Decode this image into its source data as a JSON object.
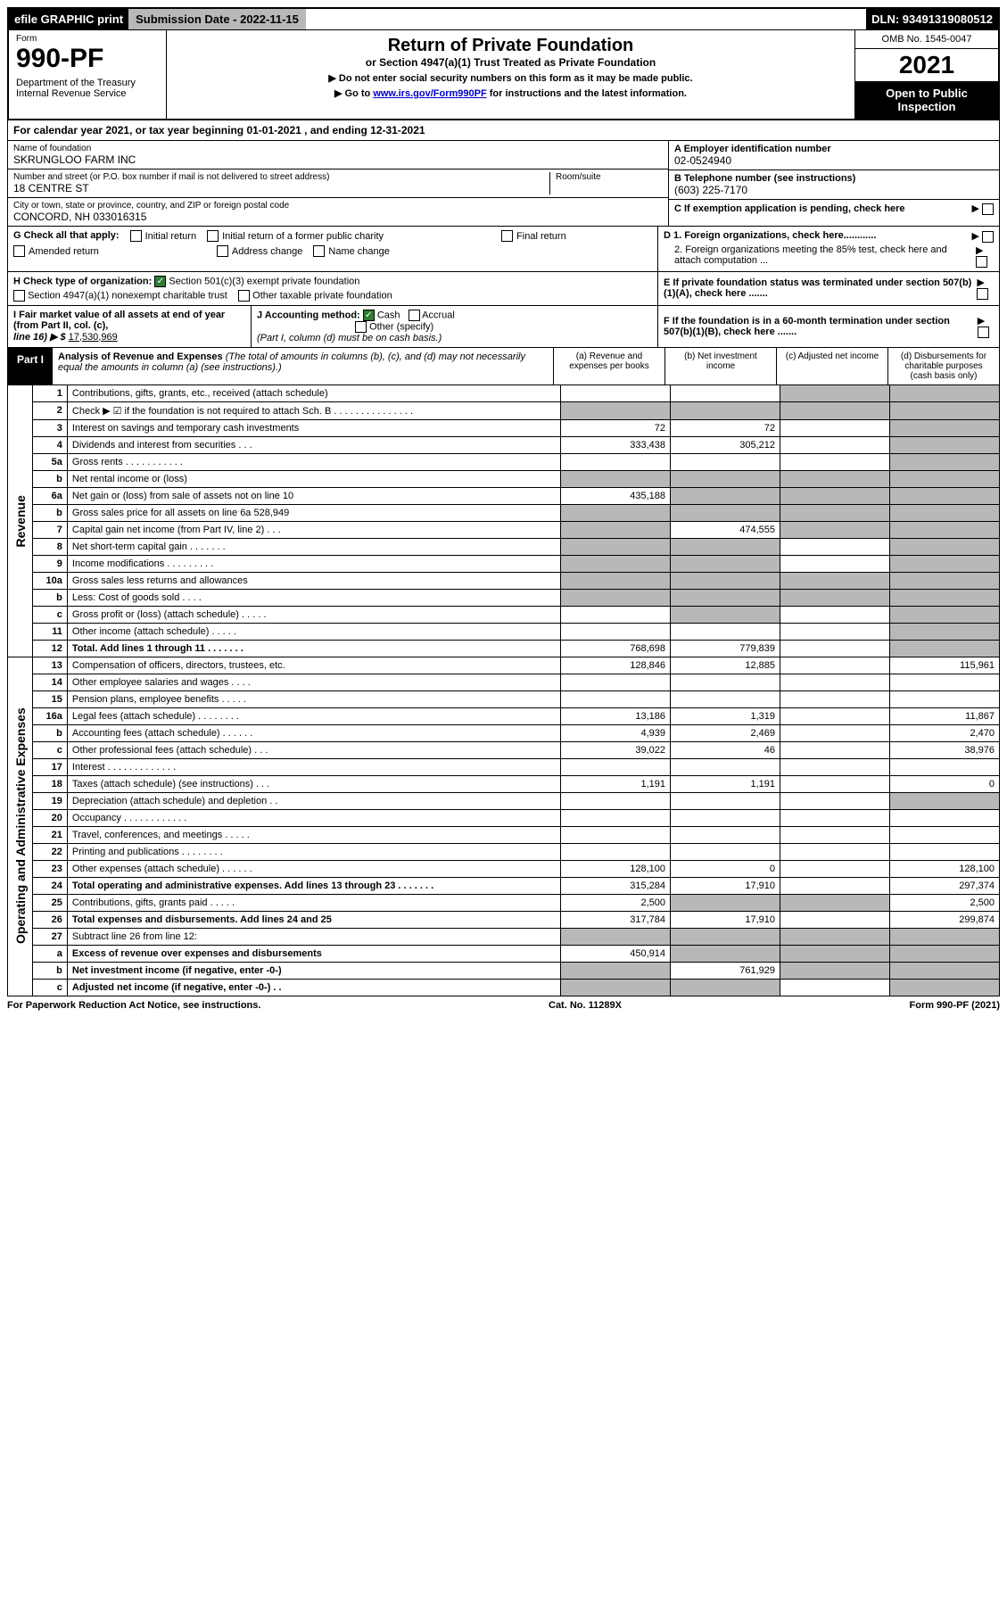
{
  "header": {
    "efile": "efile GRAPHIC print",
    "submission_label": "Submission Date - 2022-11-15",
    "dln": "DLN: 93491319080512",
    "form_label": "Form",
    "form_number": "990-PF",
    "dept": "Department of the Treasury\nInternal Revenue Service",
    "title": "Return of Private Foundation",
    "subtitle": "or Section 4947(a)(1) Trust Treated as Private Foundation",
    "instr1": "▶ Do not enter social security numbers on this form as it may be made public.",
    "instr2_pre": "▶ Go to ",
    "instr2_link": "www.irs.gov/Form990PF",
    "instr2_post": " for instructions and the latest information.",
    "omb": "OMB No. 1545-0047",
    "year": "2021",
    "open": "Open to Public Inspection"
  },
  "calendar": "For calendar year 2021, or tax year beginning 01-01-2021           , and ending 12-31-2021",
  "foundation": {
    "name_label": "Name of foundation",
    "name": "SKRUNGLOO FARM INC",
    "addr_label": "Number and street (or P.O. box number if mail is not delivered to street address)",
    "addr": "18 CENTRE ST",
    "room_label": "Room/suite",
    "city_label": "City or town, state or province, country, and ZIP or foreign postal code",
    "city": "CONCORD, NH  033016315",
    "ein_label": "A Employer identification number",
    "ein": "02-0524940",
    "phone_label": "B Telephone number (see instructions)",
    "phone": "(603) 225-7170",
    "c_label": "C If exemption application is pending, check here",
    "d1_label": "D 1. Foreign organizations, check here............",
    "d2_label": "2. Foreign organizations meeting the 85% test, check here and attach computation ...",
    "e_label": "E If private foundation status was terminated under section 507(b)(1)(A), check here .......",
    "f_label": "F If the foundation is in a 60-month termination under section 507(b)(1)(B), check here ......."
  },
  "g": {
    "label": "G Check all that apply:",
    "initial": "Initial return",
    "initial_former": "Initial return of a former public charity",
    "final": "Final return",
    "amended": "Amended return",
    "addr_change": "Address change",
    "name_change": "Name change"
  },
  "h": {
    "label": "H Check type of organization:",
    "c3": "Section 501(c)(3) exempt private foundation",
    "4947": "Section 4947(a)(1) nonexempt charitable trust",
    "other_taxable": "Other taxable private foundation"
  },
  "i": {
    "label": "I Fair market value of all assets at end of year (from Part II, col. (c),",
    "line16": "line 16) ▶ $",
    "value": "17,530,969"
  },
  "j": {
    "label": "J Accounting method:",
    "cash": "Cash",
    "accrual": "Accrual",
    "other": "Other (specify)",
    "note": "(Part I, column (d) must be on cash basis.)"
  },
  "part1": {
    "label": "Part I",
    "title": "Analysis of Revenue and Expenses",
    "note": "(The total of amounts in columns (b), (c), and (d) may not necessarily equal the amounts in column (a) (see instructions).)",
    "col_a": "(a) Revenue and expenses per books",
    "col_b": "(b) Net investment income",
    "col_c": "(c) Adjusted net income",
    "col_d": "(d) Disbursements for charitable purposes (cash basis only)"
  },
  "sidebar": {
    "revenue": "Revenue",
    "expenses": "Operating and Administrative Expenses"
  },
  "rows": [
    {
      "n": "1",
      "desc": "Contributions, gifts, grants, etc., received (attach schedule)",
      "a": "",
      "b": "",
      "c_shade": true,
      "d_shade": true
    },
    {
      "n": "2",
      "desc": "Check ▶ ☑ if the foundation is not required to attach Sch. B  . . . . . . . . . . . . . . .",
      "a_shade": true,
      "b_shade": true,
      "c_shade": true,
      "d_shade": true
    },
    {
      "n": "3",
      "desc": "Interest on savings and temporary cash investments",
      "a": "72",
      "b": "72",
      "c": "",
      "d_shade": true
    },
    {
      "n": "4",
      "desc": "Dividends and interest from securities  . . .",
      "a": "333,438",
      "b": "305,212",
      "c": "",
      "d_shade": true
    },
    {
      "n": "5a",
      "desc": "Gross rents  . . . . . . . . . . .",
      "a": "",
      "b": "",
      "c": "",
      "d_shade": true
    },
    {
      "n": "b",
      "desc": "Net rental income or (loss)",
      "a_shade": true,
      "b_shade": true,
      "c_shade": true,
      "d_shade": true
    },
    {
      "n": "6a",
      "desc": "Net gain or (loss) from sale of assets not on line 10",
      "a": "435,188",
      "b_shade": true,
      "c_shade": true,
      "d_shade": true
    },
    {
      "n": "b",
      "desc": "Gross sales price for all assets on line 6a         528,949",
      "a_shade": true,
      "b_shade": true,
      "c_shade": true,
      "d_shade": true
    },
    {
      "n": "7",
      "desc": "Capital gain net income (from Part IV, line 2)  . . .",
      "a_shade": true,
      "b": "474,555",
      "c_shade": true,
      "d_shade": true
    },
    {
      "n": "8",
      "desc": "Net short-term capital gain . . . . . . .",
      "a_shade": true,
      "b_shade": true,
      "c": "",
      "d_shade": true
    },
    {
      "n": "9",
      "desc": "Income modifications . . . . . . . . .",
      "a_shade": true,
      "b_shade": true,
      "c": "",
      "d_shade": true
    },
    {
      "n": "10a",
      "desc": "Gross sales less returns and allowances",
      "a_shade": true,
      "b_shade": true,
      "c_shade": true,
      "d_shade": true
    },
    {
      "n": "b",
      "desc": "Less: Cost of goods sold  . . . .",
      "a_shade": true,
      "b_shade": true,
      "c_shade": true,
      "d_shade": true
    },
    {
      "n": "c",
      "desc": "Gross profit or (loss) (attach schedule)  . . . . .",
      "a": "",
      "b_shade": true,
      "c": "",
      "d_shade": true
    },
    {
      "n": "11",
      "desc": "Other income (attach schedule)  . . . . .",
      "a": "",
      "b": "",
      "c": "",
      "d_shade": true
    },
    {
      "n": "12",
      "desc": "Total. Add lines 1 through 11  . . . . . . .",
      "a": "768,698",
      "b": "779,839",
      "c": "",
      "d_shade": true,
      "bold": true
    },
    {
      "n": "13",
      "desc": "Compensation of officers, directors, trustees, etc.",
      "a": "128,846",
      "b": "12,885",
      "c": "",
      "d": "115,961"
    },
    {
      "n": "14",
      "desc": "Other employee salaries and wages  . . . .",
      "a": "",
      "b": "",
      "c": "",
      "d": ""
    },
    {
      "n": "15",
      "desc": "Pension plans, employee benefits . . . . .",
      "a": "",
      "b": "",
      "c": "",
      "d": ""
    },
    {
      "n": "16a",
      "desc": "Legal fees (attach schedule) . . . . . . . .",
      "a": "13,186",
      "b": "1,319",
      "c": "",
      "d": "11,867"
    },
    {
      "n": "b",
      "desc": "Accounting fees (attach schedule) . . . . . .",
      "a": "4,939",
      "b": "2,469",
      "c": "",
      "d": "2,470"
    },
    {
      "n": "c",
      "desc": "Other professional fees (attach schedule)  . . .",
      "a": "39,022",
      "b": "46",
      "c": "",
      "d": "38,976"
    },
    {
      "n": "17",
      "desc": "Interest . . . . . . . . . . . . .",
      "a": "",
      "b": "",
      "c": "",
      "d": ""
    },
    {
      "n": "18",
      "desc": "Taxes (attach schedule) (see instructions)  . . .",
      "a": "1,191",
      "b": "1,191",
      "c": "",
      "d": "0"
    },
    {
      "n": "19",
      "desc": "Depreciation (attach schedule) and depletion  . .",
      "a": "",
      "b": "",
      "c": "",
      "d_shade": true
    },
    {
      "n": "20",
      "desc": "Occupancy . . . . . . . . . . . .",
      "a": "",
      "b": "",
      "c": "",
      "d": ""
    },
    {
      "n": "21",
      "desc": "Travel, conferences, and meetings . . . . .",
      "a": "",
      "b": "",
      "c": "",
      "d": ""
    },
    {
      "n": "22",
      "desc": "Printing and publications . . . . . . . .",
      "a": "",
      "b": "",
      "c": "",
      "d": ""
    },
    {
      "n": "23",
      "desc": "Other expenses (attach schedule) . . . . . .",
      "a": "128,100",
      "b": "0",
      "c": "",
      "d": "128,100"
    },
    {
      "n": "24",
      "desc": "Total operating and administrative expenses. Add lines 13 through 23  . . . . . . .",
      "a": "315,284",
      "b": "17,910",
      "c": "",
      "d": "297,374",
      "bold": true
    },
    {
      "n": "25",
      "desc": "Contributions, gifts, grants paid  . . . . .",
      "a": "2,500",
      "b_shade": true,
      "c_shade": true,
      "d": "2,500"
    },
    {
      "n": "26",
      "desc": "Total expenses and disbursements. Add lines 24 and 25",
      "a": "317,784",
      "b": "17,910",
      "c": "",
      "d": "299,874",
      "bold": true
    },
    {
      "n": "27",
      "desc": "Subtract line 26 from line 12:",
      "a_shade": true,
      "b_shade": true,
      "c_shade": true,
      "d_shade": true
    },
    {
      "n": "a",
      "desc": "Excess of revenue over expenses and disbursements",
      "a": "450,914",
      "b_shade": true,
      "c_shade": true,
      "d_shade": true,
      "bold": true
    },
    {
      "n": "b",
      "desc": "Net investment income (if negative, enter -0-)",
      "a_shade": true,
      "b": "761,929",
      "c_shade": true,
      "d_shade": true,
      "bold": true
    },
    {
      "n": "c",
      "desc": "Adjusted net income (if negative, enter -0-)  . .",
      "a_shade": true,
      "b_shade": true,
      "c": "",
      "d_shade": true,
      "bold": true
    }
  ],
  "footer": {
    "left": "For Paperwork Reduction Act Notice, see instructions.",
    "mid": "Cat. No. 11289X",
    "right": "Form 990-PF (2021)"
  }
}
